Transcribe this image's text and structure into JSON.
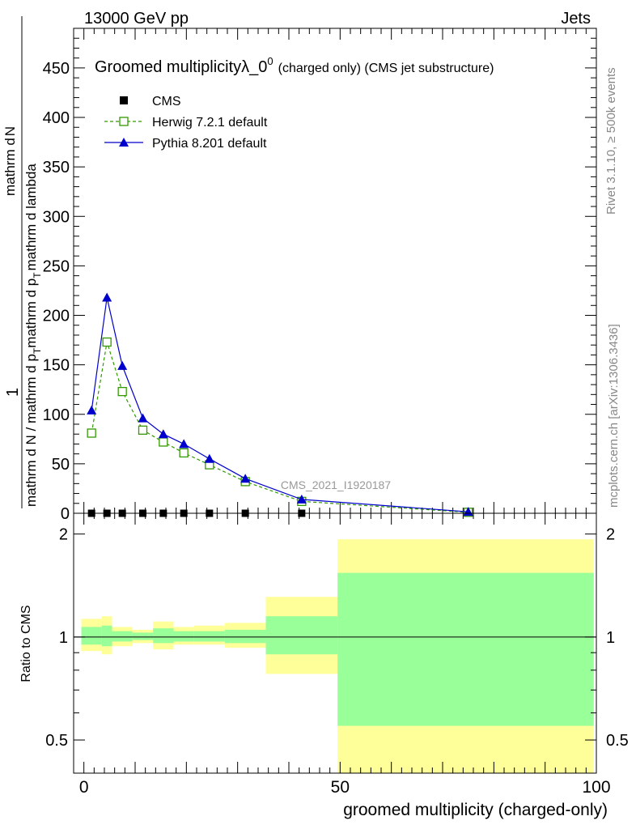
{
  "header": {
    "left": "13000 GeV pp",
    "right": "Jets"
  },
  "side": {
    "rivet": "Rivet 3.1.10, ≥ 500k events",
    "mcplots": "mcplots.cern.ch [arXiv:1306.3436]"
  },
  "chart_data": [
    {
      "type": "line",
      "title_main": "Groomed multiplicityλ_0",
      "title_sup": "0",
      "title_sub": "(charged only) (CMS jet substructure)",
      "ylabel_num": "1",
      "ylabel_left": "mathrm d N / mathrm d p",
      "ylabel_mid": "mathrm d p",
      "ylabel_right": "mathrm d lambda",
      "ylabel_sub": "T",
      "ylabel_top": "mathrm d",
      "ylabel_topN": "N",
      "watermark": "CMS_2021_I1920187",
      "xlim": [
        -2,
        100
      ],
      "ylim": [
        0,
        490
      ],
      "yticks": [
        0,
        50,
        100,
        150,
        200,
        250,
        300,
        350,
        400,
        450
      ],
      "legend_position": "top-left",
      "series": [
        {
          "name": "CMS",
          "color": "#000000",
          "marker": "square-filled",
          "x": [
            1.5,
            4.5,
            7.5,
            11.5,
            15.5,
            19.5,
            24.5,
            31.5,
            42.5
          ],
          "y": [
            0,
            0,
            0,
            0,
            0,
            0,
            0,
            0,
            0
          ]
        },
        {
          "name": "Herwig 7.2.1 default",
          "color": "#339900",
          "marker": "square-open",
          "dashed": true,
          "x": [
            1.5,
            4.5,
            7.5,
            11.5,
            15.5,
            19.5,
            24.5,
            31.5,
            42.5,
            75
          ],
          "y": [
            81,
            173,
            123,
            84,
            72,
            61,
            49,
            32,
            12,
            1
          ]
        },
        {
          "name": "Pythia 8.201 default",
          "color": "#0000cc",
          "marker": "triangle",
          "dashed": false,
          "x": [
            1.5,
            4.5,
            7.5,
            11.5,
            15.5,
            19.5,
            24.5,
            31.5,
            42.5,
            75
          ],
          "y": [
            104,
            218,
            149,
            96,
            80,
            70,
            55,
            35,
            14,
            1.5
          ]
        }
      ]
    },
    {
      "type": "area",
      "ylabel": "Ratio to CMS",
      "xlabel": "groomed multiplicity (charged-only)",
      "xlim": [
        -2,
        100
      ],
      "xticks": [
        0,
        50,
        100
      ],
      "ylim": [
        0.4,
        2.3
      ],
      "yticks": [
        0.5,
        1,
        2
      ],
      "log_y": true,
      "band_colors": {
        "stat": "#99ff99",
        "total": "#ffff99"
      },
      "bins": [
        {
          "x0": -0.5,
          "x1": 3.5,
          "stat": [
            0.95,
            1.07
          ],
          "total": [
            0.91,
            1.13
          ]
        },
        {
          "x0": 3.5,
          "x1": 5.5,
          "stat": [
            0.94,
            1.08
          ],
          "total": [
            0.89,
            1.15
          ]
        },
        {
          "x0": 5.5,
          "x1": 9.5,
          "stat": [
            0.97,
            1.04
          ],
          "total": [
            0.94,
            1.07
          ]
        },
        {
          "x0": 9.5,
          "x1": 13.5,
          "stat": [
            0.98,
            1.03
          ],
          "total": [
            0.96,
            1.05
          ]
        },
        {
          "x0": 13.5,
          "x1": 17.5,
          "stat": [
            0.96,
            1.06
          ],
          "total": [
            0.92,
            1.11
          ]
        },
        {
          "x0": 17.5,
          "x1": 21.5,
          "stat": [
            0.97,
            1.04
          ],
          "total": [
            0.95,
            1.07
          ]
        },
        {
          "x0": 21.5,
          "x1": 27.5,
          "stat": [
            0.97,
            1.04
          ],
          "total": [
            0.95,
            1.08
          ]
        },
        {
          "x0": 27.5,
          "x1": 35.5,
          "stat": [
            0.96,
            1.05
          ],
          "total": [
            0.93,
            1.1
          ]
        },
        {
          "x0": 35.5,
          "x1": 49.5,
          "stat": [
            0.89,
            1.15
          ],
          "total": [
            0.78,
            1.31
          ]
        },
        {
          "x0": 49.5,
          "x1": 99.5,
          "stat": [
            0.55,
            1.54
          ],
          "total": [
            0.35,
            1.93
          ]
        }
      ]
    }
  ]
}
